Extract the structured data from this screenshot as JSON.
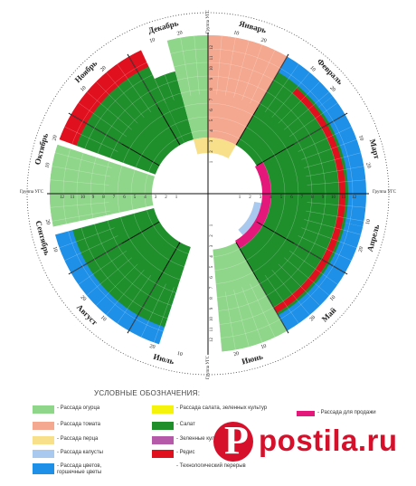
{
  "months": [
    "Январь",
    "Февраль",
    "Март",
    "Апрель",
    "Май",
    "Июнь",
    "Июль",
    "Август",
    "Сентябрь",
    "Октябрь",
    "Ноябрь",
    "Декабрь"
  ],
  "ring_ticks": [
    "10",
    "20"
  ],
  "group_label": "Группа УГС",
  "hour_ticks": [
    "1",
    "2",
    "3",
    "4",
    "5",
    "6",
    "7",
    "8",
    "9",
    "10",
    "11",
    "12"
  ],
  "legend": {
    "title": "УСЛОВНЫЕ ОБОЗНАЧЕНИЯ:",
    "items": [
      {
        "label": "- Рассада огурца",
        "color": "#8fd68a"
      },
      {
        "label": "- Рассада томата",
        "color": "#f4a88f"
      },
      {
        "label": "- Рассада перца",
        "color": "#f8e08a"
      },
      {
        "label": "- Рассада капусты",
        "color": "#a9c9ef"
      },
      {
        "label": "- Рассада цветов, горшечные цветы",
        "color": "#1e90e8"
      },
      {
        "label": "- Рассада салата, зеленных культур",
        "color": "#f5f20c"
      },
      {
        "label": "- Салат",
        "color": "#1f8f2c"
      },
      {
        "label": "- Зеленные культуры",
        "color": "#b45aa8"
      },
      {
        "label": "- Редис",
        "color": "#e0101e"
      },
      {
        "label": "- Технологический перерыв",
        "color": "#ffffff"
      },
      {
        "label": "- Рассада для продажи",
        "color": "#e4177b"
      }
    ]
  },
  "watermark": {
    "icon": "P",
    "text": "postila.ru"
  }
}
